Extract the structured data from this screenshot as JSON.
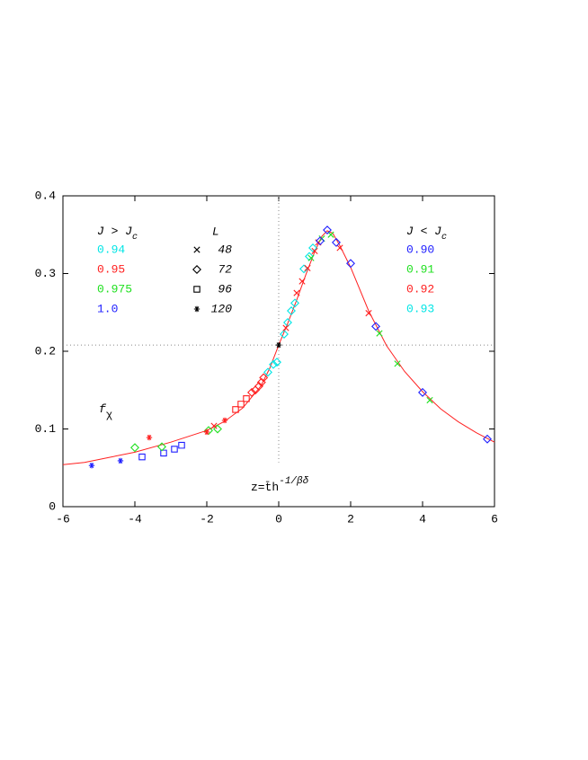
{
  "chart_data": {
    "type": "scatter",
    "x_label": {
      "main": "z=t̄h",
      "sup": "-1/βδ"
    },
    "y_label": {
      "main": "f",
      "sub": "χ"
    },
    "xlim": [
      -6,
      6
    ],
    "ylim": [
      0,
      0.4
    ],
    "xticks": [
      -6,
      -4,
      -2,
      0,
      2,
      4,
      6
    ],
    "yticks": [
      0,
      0.1,
      0.2,
      0.3,
      0.4
    ],
    "grid": false,
    "reference_lines": {
      "x": 0,
      "x_line_bottom": 0.057,
      "y": 0.208,
      "style": "dotted",
      "color": "#888888"
    },
    "curve": {
      "color": "#ff2020",
      "x": [
        -6,
        -5.4,
        -4,
        -3,
        -2,
        -1.5,
        -1,
        -0.5,
        -0.25,
        0,
        0.25,
        0.5,
        0.75,
        1,
        1.2,
        1.35,
        1.5,
        1.7,
        2,
        2.5,
        3,
        3.5,
        4,
        4.5,
        5,
        5.5,
        6
      ],
      "y": [
        0.054,
        0.057,
        0.07,
        0.083,
        0.098,
        0.11,
        0.127,
        0.155,
        0.178,
        0.208,
        0.236,
        0.266,
        0.298,
        0.328,
        0.348,
        0.355,
        0.352,
        0.336,
        0.308,
        0.252,
        0.207,
        0.174,
        0.148,
        0.126,
        0.109,
        0.095,
        0.083
      ]
    },
    "series": [
      {
        "color": "#2020ff",
        "marker": "star",
        "x": [
          -5.2,
          -4.4
        ],
        "y": [
          0.053,
          0.059
        ]
      },
      {
        "color": "#2020ff",
        "marker": "square",
        "x": [
          -3.8,
          -3.2,
          -2.9,
          -2.7
        ],
        "y": [
          0.064,
          0.069,
          0.074,
          0.079
        ]
      },
      {
        "color": "#20e020",
        "marker": "diamond",
        "x": [
          -4.0,
          -3.25,
          -1.95,
          -1.7
        ],
        "y": [
          0.076,
          0.077,
          0.098,
          0.1
        ]
      },
      {
        "color": "#ff2020",
        "marker": "star",
        "x": [
          -3.6,
          -2.0,
          -1.5
        ],
        "y": [
          0.089,
          0.096,
          0.111
        ]
      },
      {
        "color": "#ff2020",
        "marker": "cross",
        "x": [
          -1.8
        ],
        "y": [
          0.104
        ]
      },
      {
        "color": "#ff2020",
        "marker": "square",
        "x": [
          -1.2,
          -1.05,
          -0.9
        ],
        "y": [
          0.125,
          0.132,
          0.139
        ]
      },
      {
        "color": "#ff2020",
        "marker": "diamond",
        "x": [
          -0.75,
          -0.65,
          -0.55,
          -0.48,
          -0.42
        ],
        "y": [
          0.147,
          0.15,
          0.155,
          0.16,
          0.166
        ]
      },
      {
        "color": "#00e5e5",
        "marker": "diamond",
        "x": [
          -0.3,
          -0.15,
          -0.05
        ],
        "y": [
          0.173,
          0.183,
          0.186
        ]
      },
      {
        "color": "#000000",
        "marker": "star",
        "x": [
          0
        ],
        "y": [
          0.208
        ]
      },
      {
        "color": "#00e5e5",
        "marker": "diamond",
        "x": [
          0.15,
          0.25,
          0.35,
          0.45,
          0.7,
          0.85,
          0.95
        ],
        "y": [
          0.222,
          0.237,
          0.252,
          0.262,
          0.306,
          0.322,
          0.333
        ]
      },
      {
        "color": "#ff2020",
        "marker": "cross",
        "x": [
          0.2,
          0.5,
          0.65,
          0.8,
          1.0,
          1.1,
          1.7,
          2.5
        ],
        "y": [
          0.23,
          0.275,
          0.29,
          0.307,
          0.329,
          0.34,
          0.333,
          0.249
        ]
      },
      {
        "color": "#20e020",
        "marker": "cross",
        "x": [
          0.9,
          1.2,
          1.45,
          2.8,
          3.3,
          4.2
        ],
        "y": [
          0.32,
          0.345,
          0.35,
          0.223,
          0.184,
          0.137
        ]
      },
      {
        "color": "#2020ff",
        "marker": "diamond",
        "x": [
          1.15,
          1.35,
          1.6,
          2.0,
          2.7,
          4.0,
          5.8
        ],
        "y": [
          0.342,
          0.356,
          0.34,
          0.313,
          0.232,
          0.147,
          0.087
        ]
      }
    ],
    "legend": {
      "above": {
        "title": {
          "main": "J > J",
          "sub": "c"
        },
        "entries": [
          {
            "label": "0.94",
            "color": "#00e5e5"
          },
          {
            "label": "0.95",
            "color": "#ff2020"
          },
          {
            "label": "0.975",
            "color": "#20e020"
          },
          {
            "label": "1.0",
            "color": "#2020ff"
          }
        ]
      },
      "sizes": {
        "title": "L",
        "entries": [
          {
            "label": "48",
            "marker": "cross"
          },
          {
            "label": "72",
            "marker": "diamond"
          },
          {
            "label": "96",
            "marker": "square"
          },
          {
            "label": "120",
            "marker": "star"
          }
        ]
      },
      "below": {
        "title": {
          "main": "J < J",
          "sub": "c"
        },
        "entries": [
          {
            "label": "0.90",
            "color": "#2020ff"
          },
          {
            "label": "0.91",
            "color": "#20e020"
          },
          {
            "label": "0.92",
            "color": "#ff2020"
          },
          {
            "label": "0.93",
            "color": "#00e5e5"
          }
        ]
      }
    }
  }
}
